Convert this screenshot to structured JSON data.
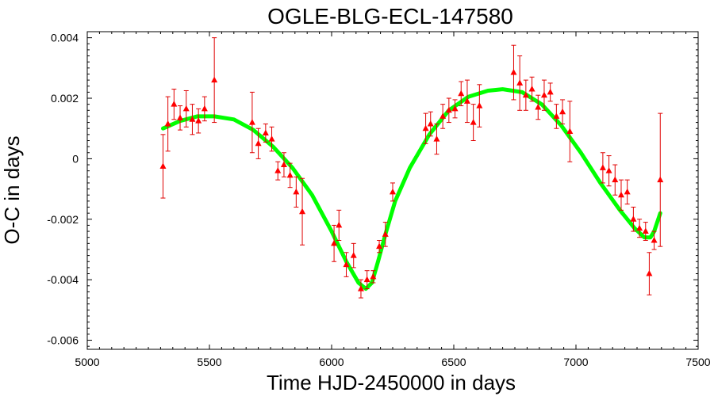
{
  "chart_data": {
    "type": "scatter",
    "title": "OGLE-BLG-ECL-147580",
    "xlabel": "Time HJD-2450000 in days",
    "ylabel": "O-C in days",
    "xlim": [
      5000,
      7500
    ],
    "ylim": [
      -0.0063,
      0.0042
    ],
    "xticks": [
      5000,
      5500,
      6000,
      6500,
      7000,
      7500
    ],
    "xtick_labels": [
      "5000",
      "5500",
      "6000",
      "6500",
      "7000",
      "7500"
    ],
    "yticks": [
      0.004,
      0.002,
      0,
      -0.002,
      -0.004,
      -0.006
    ],
    "ytick_labels": [
      "0.004",
      "0.002",
      "0",
      "-0.002",
      "-0.004",
      "-0.006"
    ],
    "grid": false,
    "legend": "none",
    "colors": {
      "points": "#ff0000",
      "errorbars": "#e00000",
      "fit": "#00ff00",
      "frame": "#000000"
    },
    "series": [
      {
        "kind": "errorbar-points",
        "points": [
          {
            "x": 5310,
            "y": -0.00025,
            "err": 0.00105
          },
          {
            "x": 5330,
            "y": 0.00115,
            "err": 0.0009
          },
          {
            "x": 5355,
            "y": 0.0018,
            "err": 0.0005
          },
          {
            "x": 5380,
            "y": 0.00135,
            "err": 0.0004
          },
          {
            "x": 5405,
            "y": 0.00165,
            "err": 0.0006
          },
          {
            "x": 5430,
            "y": 0.0013,
            "err": 0.0005
          },
          {
            "x": 5455,
            "y": 0.00125,
            "err": 0.0004
          },
          {
            "x": 5480,
            "y": 0.00165,
            "err": 0.0004
          },
          {
            "x": 5520,
            "y": 0.0026,
            "err": 0.0014
          },
          {
            "x": 5675,
            "y": 0.0012,
            "err": 0.001
          },
          {
            "x": 5700,
            "y": 0.0005,
            "err": 0.0005
          },
          {
            "x": 5730,
            "y": 0.00085,
            "err": 0.0003
          },
          {
            "x": 5755,
            "y": 0.00065,
            "err": 0.0004
          },
          {
            "x": 5780,
            "y": -0.0004,
            "err": 0.0003
          },
          {
            "x": 5805,
            "y": -0.0002,
            "err": 0.0004
          },
          {
            "x": 5830,
            "y": -0.00055,
            "err": 0.0004
          },
          {
            "x": 5855,
            "y": -0.0011,
            "err": 0.0005
          },
          {
            "x": 5880,
            "y": -0.00175,
            "err": 0.0011
          },
          {
            "x": 6010,
            "y": -0.0028,
            "err": 0.0006
          },
          {
            "x": 6030,
            "y": -0.0022,
            "err": 0.0005
          },
          {
            "x": 6060,
            "y": -0.0035,
            "err": 0.0004
          },
          {
            "x": 6090,
            "y": -0.0032,
            "err": 0.0004
          },
          {
            "x": 6120,
            "y": -0.0043,
            "err": 0.0003
          },
          {
            "x": 6145,
            "y": -0.004,
            "err": 0.0003
          },
          {
            "x": 6170,
            "y": -0.0039,
            "err": 0.0002
          },
          {
            "x": 6195,
            "y": -0.0029,
            "err": 0.0002
          },
          {
            "x": 6220,
            "y": -0.0025,
            "err": 0.0004
          },
          {
            "x": 6250,
            "y": -0.0011,
            "err": 0.0003
          },
          {
            "x": 6385,
            "y": 0.001,
            "err": 0.0005
          },
          {
            "x": 6405,
            "y": 0.00115,
            "err": 0.0004
          },
          {
            "x": 6430,
            "y": 0.00065,
            "err": 0.0005
          },
          {
            "x": 6455,
            "y": 0.0014,
            "err": 0.0004
          },
          {
            "x": 6480,
            "y": 0.0016,
            "err": 0.0004
          },
          {
            "x": 6505,
            "y": 0.00165,
            "err": 0.0003
          },
          {
            "x": 6530,
            "y": 0.00215,
            "err": 0.0004
          },
          {
            "x": 6555,
            "y": 0.0019,
            "err": 0.0007
          },
          {
            "x": 6580,
            "y": 0.0012,
            "err": 0.0006
          },
          {
            "x": 6605,
            "y": 0.00175,
            "err": 0.0007
          },
          {
            "x": 6745,
            "y": 0.00285,
            "err": 0.0009
          },
          {
            "x": 6770,
            "y": 0.0025,
            "err": 0.0009
          },
          {
            "x": 6795,
            "y": 0.0021,
            "err": 0.0005
          },
          {
            "x": 6820,
            "y": 0.0023,
            "err": 0.0004
          },
          {
            "x": 6845,
            "y": 0.0017,
            "err": 0.0004
          },
          {
            "x": 6870,
            "y": 0.0021,
            "err": 0.0005
          },
          {
            "x": 6895,
            "y": 0.0022,
            "err": 0.0003
          },
          {
            "x": 6920,
            "y": 0.0014,
            "err": 0.0004
          },
          {
            "x": 6945,
            "y": 0.00155,
            "err": 0.0004
          },
          {
            "x": 6975,
            "y": 0.0009,
            "err": 0.001
          },
          {
            "x": 7110,
            "y": -0.0003,
            "err": 0.0005
          },
          {
            "x": 7135,
            "y": -0.0004,
            "err": 0.0005
          },
          {
            "x": 7160,
            "y": -0.0007,
            "err": 0.0005
          },
          {
            "x": 7185,
            "y": -0.0012,
            "err": 0.0005
          },
          {
            "x": 7210,
            "y": -0.0011,
            "err": 0.0004
          },
          {
            "x": 7235,
            "y": -0.002,
            "err": 0.0004
          },
          {
            "x": 7260,
            "y": -0.0023,
            "err": 0.0003
          },
          {
            "x": 7285,
            "y": -0.0024,
            "err": 0.0003
          },
          {
            "x": 7300,
            "y": -0.0038,
            "err": 0.0007
          },
          {
            "x": 7320,
            "y": -0.0027,
            "err": 0.0003
          },
          {
            "x": 7345,
            "y": -0.0007,
            "err": 0.0022
          }
        ]
      },
      {
        "kind": "fit-line",
        "x": [
          5310,
          5380,
          5450,
          5520,
          5600,
          5680,
          5760,
          5840,
          5920,
          6000,
          6060,
          6110,
          6140,
          6165,
          6190,
          6220,
          6260,
          6320,
          6400,
          6480,
          6560,
          6640,
          6700,
          6780,
          6860,
          6940,
          7020,
          7100,
          7180,
          7240,
          7280,
          7305,
          7320,
          7345
        ],
        "y": [
          0.001,
          0.00125,
          0.0014,
          0.0014,
          0.0013,
          0.00095,
          0.0004,
          -0.0003,
          -0.0012,
          -0.0024,
          -0.0034,
          -0.0041,
          -0.0043,
          -0.0041,
          -0.0034,
          -0.0025,
          -0.0014,
          -0.0003,
          0.0008,
          0.0016,
          0.00205,
          0.00225,
          0.0023,
          0.0022,
          0.0018,
          0.0011,
          0.0002,
          -0.0008,
          -0.0017,
          -0.0023,
          -0.0026,
          -0.0026,
          -0.0024,
          -0.0018
        ]
      }
    ]
  }
}
